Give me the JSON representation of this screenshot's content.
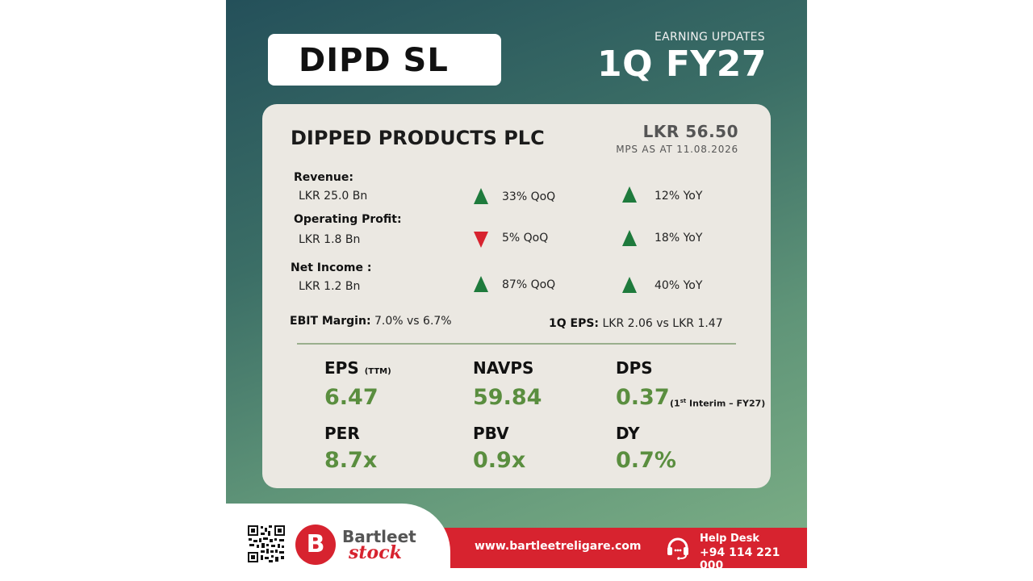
{
  "header": {
    "ticker": "DIPD SL",
    "earning_label": "EARNING UPDATES",
    "period": "1Q FY27"
  },
  "card": {
    "company": "DIPPED PRODUCTS PLC",
    "price": "LKR 56.50",
    "price_note": "MPS AS AT 11.08.2026",
    "metrics": [
      {
        "label": "Revenue:",
        "value": "LKR 25.0 Bn",
        "qoq": "33% QoQ",
        "qoq_dir": "up",
        "yoy": "12% YoY",
        "yoy_dir": "up"
      },
      {
        "label": "Operating Profit:",
        "value": "LKR 1.8 Bn",
        "qoq": "5% QoQ",
        "qoq_dir": "down",
        "yoy": "18% YoY",
        "yoy_dir": "up"
      },
      {
        "label": "Net Income :",
        "value": "LKR 1.2 Bn",
        "qoq": "87% QoQ",
        "qoq_dir": "up",
        "yoy": "40% YoY",
        "yoy_dir": "up"
      }
    ],
    "ebit_label": "EBIT Margin:",
    "ebit_value": "7.0% vs 6.7%",
    "eps_label": "1Q EPS:",
    "eps_value": "LKR 2.06 vs LKR 1.47",
    "ratios": {
      "eps": {
        "label": "EPS",
        "sub": "(TTM)",
        "value": "6.47"
      },
      "navps": {
        "label": "NAVPS",
        "value": "59.84"
      },
      "dps": {
        "label": "DPS",
        "value": "0.37",
        "note_prefix": "(1",
        "note_sup": "st",
        "note_suffix": " Interim – FY27)"
      },
      "per": {
        "label": "PER",
        "value": "8.7x"
      },
      "pbv": {
        "label": "PBV",
        "value": "0.9x"
      },
      "dy": {
        "label": "DY",
        "value": "0.7%"
      }
    }
  },
  "footer": {
    "logo_letter": "B",
    "brand_top": "Bartleet",
    "brand_bottom": "stock",
    "website": "www.bartleetreligare.com",
    "help_title": "Help Desk",
    "help_phone": "+94 114 221 000"
  },
  "colors": {
    "up": "#1e7a3c",
    "down": "#d7232f",
    "accent_green": "#5a8e3f",
    "brand_red": "#d7232f"
  },
  "icons": [
    "up-arrow-icon",
    "down-arrow-icon",
    "qr-code-icon",
    "headset-icon",
    "brand-logo-icon"
  ]
}
